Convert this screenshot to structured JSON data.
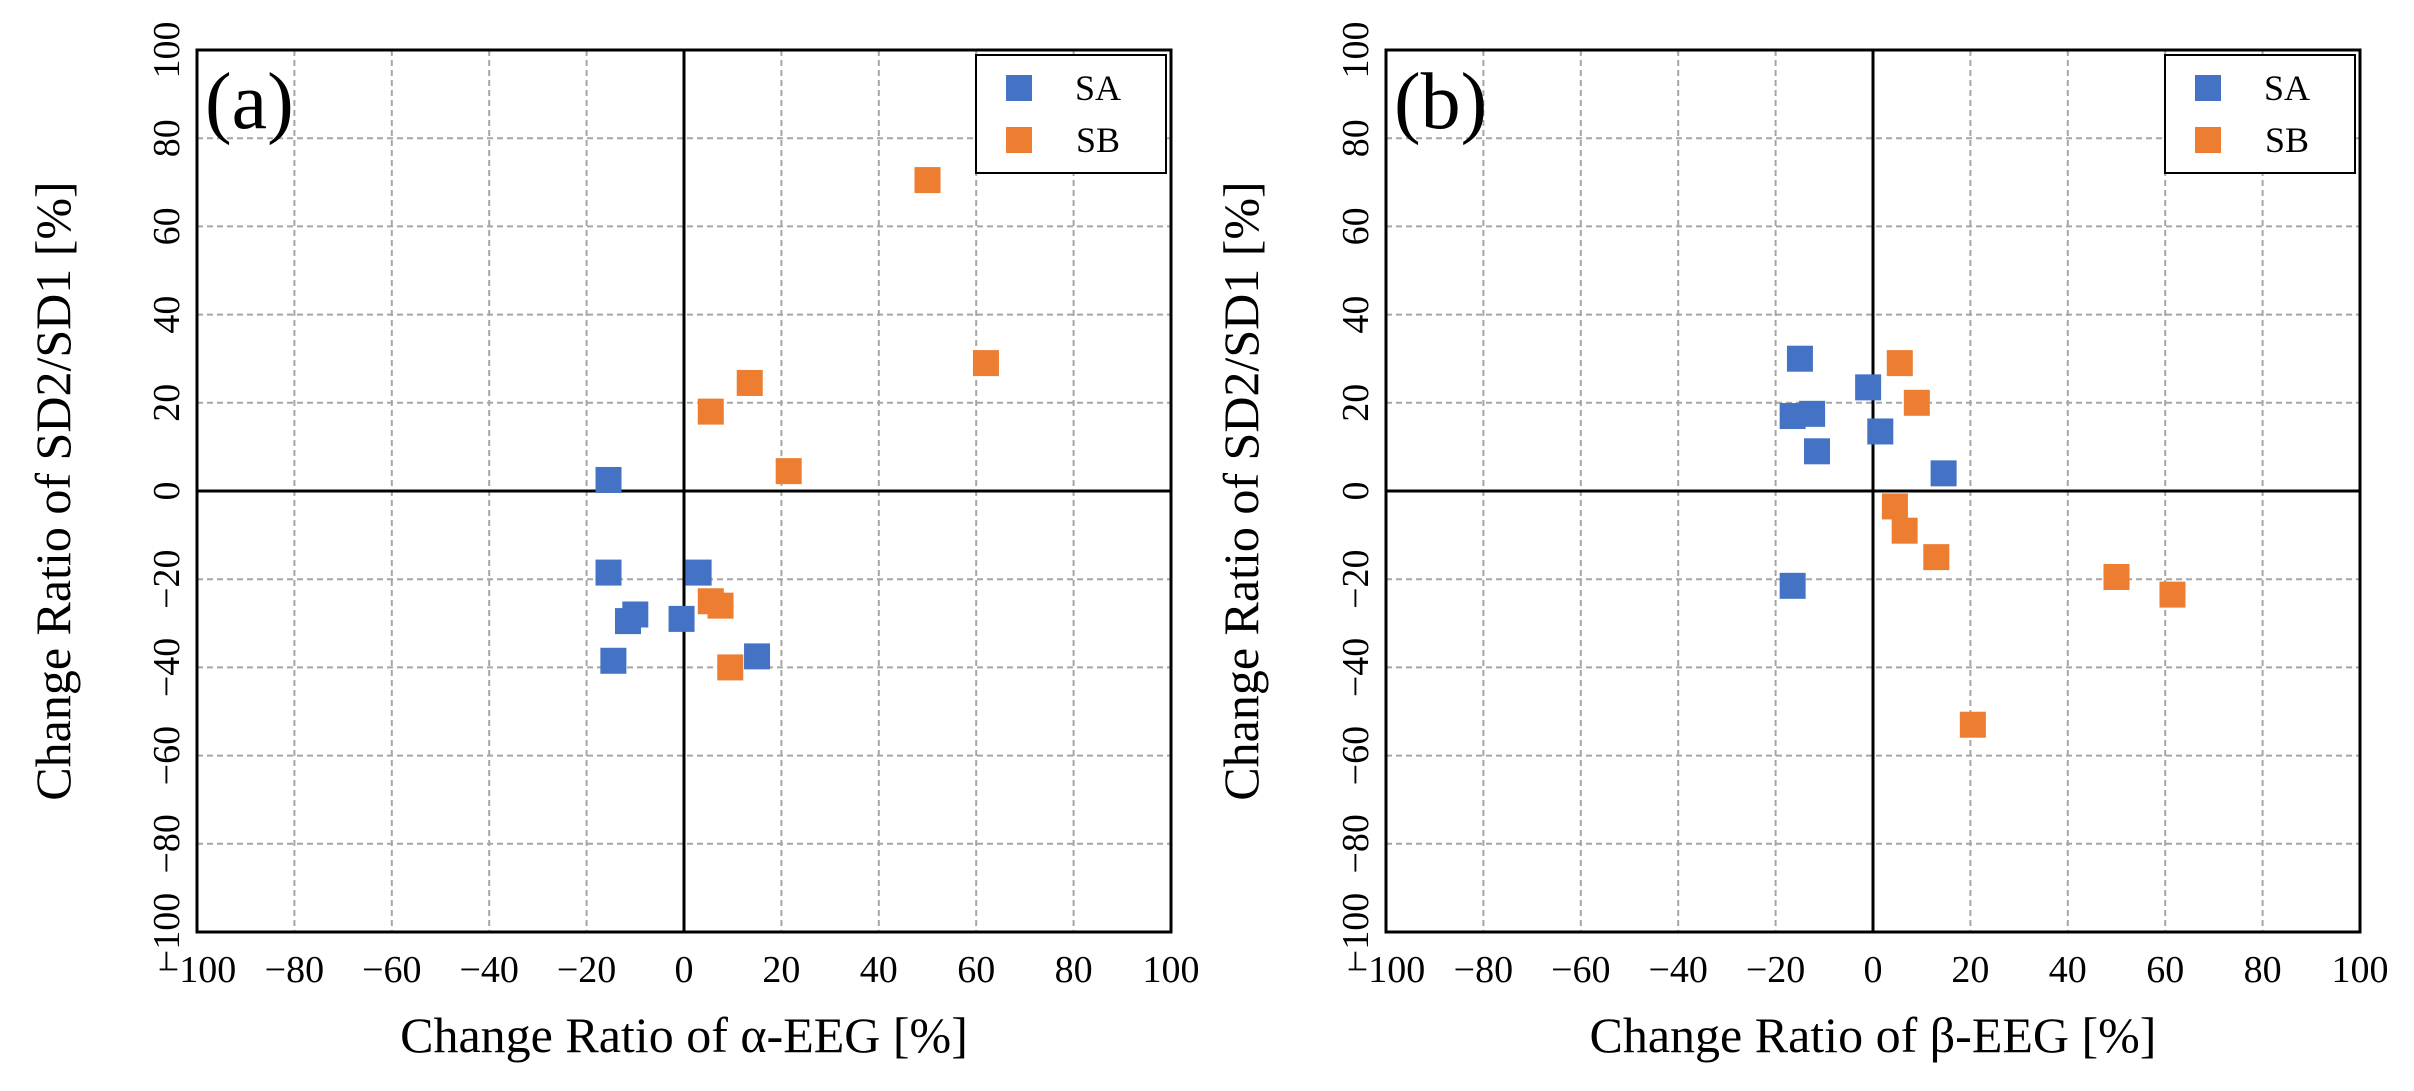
{
  "chart_data": [
    {
      "type": "scatter",
      "panel_label": "(a)",
      "xlabel": "Change Ratio of α-EEG [%]",
      "ylabel": "Change Ratio of SD2/SD1 [%]",
      "xlim": [
        -100,
        100
      ],
      "ylim": [
        -100,
        100
      ],
      "xticks": [
        -100,
        -80,
        -60,
        -40,
        -20,
        0,
        20,
        40,
        60,
        80,
        100
      ],
      "yticks": [
        -100,
        -80,
        -60,
        -40,
        -20,
        0,
        20,
        40,
        60,
        80,
        100
      ],
      "grid": true,
      "legend_position": "top-right",
      "series": [
        {
          "name": "SA",
          "color": "#4472c4",
          "points": [
            {
              "x": -15.5,
              "y": 2.5
            },
            {
              "x": -15.5,
              "y": -18.5
            },
            {
              "x": -14.5,
              "y": -38.5
            },
            {
              "x": -11.5,
              "y": -29.5
            },
            {
              "x": -10.0,
              "y": -28.0
            },
            {
              "x": -0.5,
              "y": -29.0
            },
            {
              "x": 3.0,
              "y": -18.5
            },
            {
              "x": 15.0,
              "y": -37.5
            }
          ]
        },
        {
          "name": "SB",
          "color": "#ed7d31",
          "points": [
            {
              "x": 5.5,
              "y": 18.0
            },
            {
              "x": 13.5,
              "y": 24.5
            },
            {
              "x": 21.5,
              "y": 4.5
            },
            {
              "x": 50.0,
              "y": 70.5
            },
            {
              "x": 62.0,
              "y": 29.0
            },
            {
              "x": 5.5,
              "y": -25.0
            },
            {
              "x": 7.5,
              "y": -26.0
            },
            {
              "x": 9.5,
              "y": -40.0
            }
          ]
        }
      ]
    },
    {
      "type": "scatter",
      "panel_label": "(b)",
      "xlabel": "Change Ratio of β-EEG [%]",
      "ylabel": "Change Ratio of SD2/SD1 [%]",
      "xlim": [
        -100,
        100
      ],
      "ylim": [
        -100,
        100
      ],
      "xticks": [
        -100,
        -80,
        -60,
        -40,
        -20,
        0,
        20,
        40,
        60,
        80,
        100
      ],
      "yticks": [
        -100,
        -80,
        -60,
        -40,
        -20,
        0,
        20,
        40,
        60,
        80,
        100
      ],
      "grid": true,
      "legend_position": "top-right",
      "series": [
        {
          "name": "SA",
          "color": "#4472c4",
          "points": [
            {
              "x": -15.0,
              "y": 30.0
            },
            {
              "x": -16.5,
              "y": 17.0
            },
            {
              "x": -12.5,
              "y": 17.5
            },
            {
              "x": -11.5,
              "y": 9.0
            },
            {
              "x": -1.0,
              "y": 23.5
            },
            {
              "x": 1.5,
              "y": 13.5
            },
            {
              "x": 14.5,
              "y": 4.0
            },
            {
              "x": -16.5,
              "y": -21.5
            }
          ]
        },
        {
          "name": "SB",
          "color": "#ed7d31",
          "points": [
            {
              "x": 5.5,
              "y": 29.0
            },
            {
              "x": 9.0,
              "y": 20.0
            },
            {
              "x": 4.5,
              "y": -3.5
            },
            {
              "x": 6.5,
              "y": -9.0
            },
            {
              "x": 13.0,
              "y": -15.0
            },
            {
              "x": 50.0,
              "y": -19.5
            },
            {
              "x": 61.5,
              "y": -23.5
            },
            {
              "x": 20.5,
              "y": -53.0
            }
          ]
        }
      ]
    }
  ]
}
